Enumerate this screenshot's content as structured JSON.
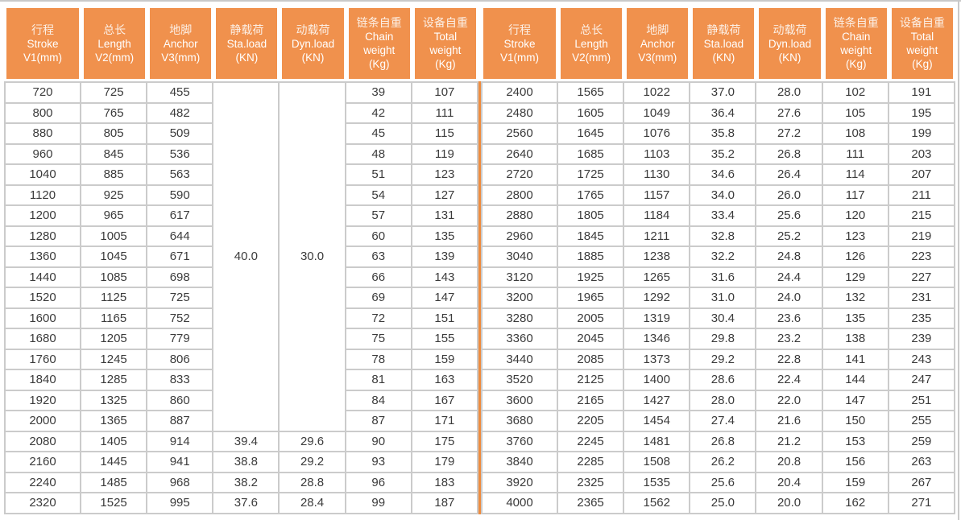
{
  "colors": {
    "header_bg": "#F0914D",
    "divider": "#EE8C3F",
    "grid": "#CBCBCB",
    "body_text": "#3B3B3B",
    "edge_line": "#C9C9C9",
    "header_text": "#FFFFFF"
  },
  "table": {
    "columns": [
      {
        "key": "stroke",
        "lines": [
          "行程",
          "Stroke",
          "V1(mm)"
        ]
      },
      {
        "key": "length",
        "lines": [
          "总长",
          "Length",
          "V2(mm)"
        ]
      },
      {
        "key": "anchor",
        "lines": [
          "地脚",
          "Anchor",
          "V3(mm)"
        ]
      },
      {
        "key": "sta-load",
        "lines": [
          "静载荷",
          "Sta.load",
          "(KN)"
        ]
      },
      {
        "key": "dyn-load",
        "lines": [
          "动载荷",
          "Dyn.load",
          "(KN)"
        ]
      },
      {
        "key": "chain-weight",
        "lines": [
          "链条自重",
          "Chain",
          "weight",
          "(Kg)"
        ]
      },
      {
        "key": "total-weight",
        "lines": [
          "设备自重",
          "Total",
          "weight",
          "(Kg)"
        ]
      }
    ],
    "left": {
      "merged": {
        "sta_load": "40.0",
        "dyn_load": "30.0",
        "rowspan": 17
      },
      "rows": [
        [
          720,
          725,
          455,
          null,
          null,
          39,
          107
        ],
        [
          800,
          765,
          482,
          null,
          null,
          42,
          111
        ],
        [
          880,
          805,
          509,
          null,
          null,
          45,
          115
        ],
        [
          960,
          845,
          536,
          null,
          null,
          48,
          119
        ],
        [
          1040,
          885,
          563,
          null,
          null,
          51,
          123
        ],
        [
          1120,
          925,
          590,
          null,
          null,
          54,
          127
        ],
        [
          1200,
          965,
          617,
          null,
          null,
          57,
          131
        ],
        [
          1280,
          1005,
          644,
          null,
          null,
          60,
          135
        ],
        [
          1360,
          1045,
          671,
          null,
          null,
          63,
          139
        ],
        [
          1440,
          1085,
          698,
          null,
          null,
          66,
          143
        ],
        [
          1520,
          1125,
          725,
          null,
          null,
          69,
          147
        ],
        [
          1600,
          1165,
          752,
          null,
          null,
          72,
          151
        ],
        [
          1680,
          1205,
          779,
          null,
          null,
          75,
          155
        ],
        [
          1760,
          1245,
          806,
          null,
          null,
          78,
          159
        ],
        [
          1840,
          1285,
          833,
          null,
          null,
          81,
          163
        ],
        [
          1920,
          1325,
          860,
          null,
          null,
          84,
          167
        ],
        [
          2000,
          1365,
          887,
          null,
          null,
          87,
          171
        ],
        [
          2080,
          1405,
          914,
          "39.4",
          "29.6",
          90,
          175
        ],
        [
          2160,
          1445,
          941,
          "38.8",
          "29.2",
          93,
          179
        ],
        [
          2240,
          1485,
          968,
          "38.2",
          "28.8",
          96,
          183
        ],
        [
          2320,
          1525,
          995,
          "37.6",
          "28.4",
          99,
          187
        ]
      ]
    },
    "right": {
      "merged": null,
      "rows": [
        [
          2400,
          1565,
          1022,
          "37.0",
          "28.0",
          102,
          191
        ],
        [
          2480,
          1605,
          1049,
          "36.4",
          "27.6",
          105,
          195
        ],
        [
          2560,
          1645,
          1076,
          "35.8",
          "27.2",
          108,
          199
        ],
        [
          2640,
          1685,
          1103,
          "35.2",
          "26.8",
          111,
          203
        ],
        [
          2720,
          1725,
          1130,
          "34.6",
          "26.4",
          114,
          207
        ],
        [
          2800,
          1765,
          1157,
          "34.0",
          "26.0",
          117,
          211
        ],
        [
          2880,
          1805,
          1184,
          "33.4",
          "25.6",
          120,
          215
        ],
        [
          2960,
          1845,
          1211,
          "32.8",
          "25.2",
          123,
          219
        ],
        [
          3040,
          1885,
          1238,
          "32.2",
          "24.8",
          126,
          223
        ],
        [
          3120,
          1925,
          1265,
          "31.6",
          "24.4",
          129,
          227
        ],
        [
          3200,
          1965,
          1292,
          "31.0",
          "24.0",
          132,
          231
        ],
        [
          3280,
          2005,
          1319,
          "30.4",
          "23.6",
          135,
          235
        ],
        [
          3360,
          2045,
          1346,
          "29.8",
          "23.2",
          138,
          239
        ],
        [
          3440,
          2085,
          1373,
          "29.2",
          "22.8",
          141,
          243
        ],
        [
          3520,
          2125,
          1400,
          "28.6",
          "22.4",
          144,
          247
        ],
        [
          3600,
          2165,
          1427,
          "28.0",
          "22.0",
          147,
          251
        ],
        [
          3680,
          2205,
          1454,
          "27.4",
          "21.6",
          150,
          255
        ],
        [
          3760,
          2245,
          1481,
          "26.8",
          "21.2",
          153,
          259
        ],
        [
          3840,
          2285,
          1508,
          "26.2",
          "20.8",
          156,
          263
        ],
        [
          3920,
          2325,
          1535,
          "25.6",
          "20.4",
          159,
          267
        ],
        [
          4000,
          2365,
          1562,
          "25.0",
          "20.0",
          162,
          271
        ]
      ]
    }
  }
}
